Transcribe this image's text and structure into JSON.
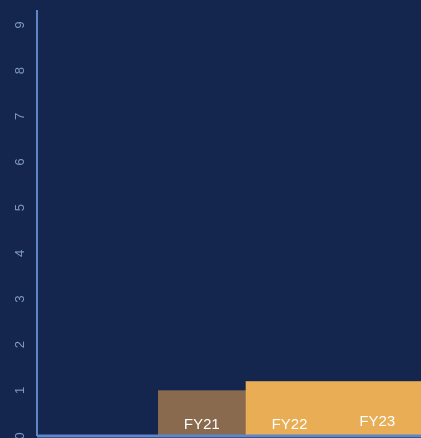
{
  "chart_data": {
    "type": "bar",
    "title": "",
    "xlabel": "",
    "ylabel": "",
    "categories": [
      "FY21",
      "FY22",
      "FY23"
    ],
    "values": [
      1.0,
      1.2,
      1.2
    ],
    "ylim": [
      0,
      9
    ],
    "yticks": [
      "0",
      "1",
      "2",
      "3",
      "4",
      "5",
      "6",
      "7",
      "8",
      "9"
    ],
    "grid": false,
    "colors": {
      "background": "#14264e",
      "axis": "#5e86c8",
      "tick_text": "#7f9ac6",
      "bars": [
        "#8a6a4e",
        "#e8ad55",
        "#e8ad55"
      ],
      "bar_text": "#ffffff"
    }
  }
}
